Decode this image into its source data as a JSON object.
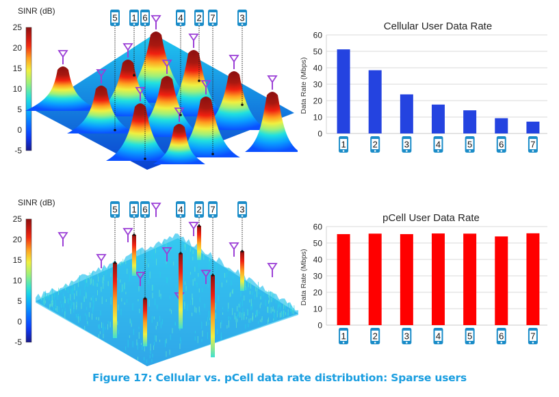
{
  "caption": "Figure 17: Cellular vs. pCell data rate distribution: Sparse users",
  "colors": {
    "cellular_bar": "#2443e0",
    "pcell_bar": "#ff0000",
    "antenna": "#9b3fd6",
    "phone_icon": "#1a8cc8",
    "caption": "#1a9ee0",
    "grid": "#d9d9d9"
  },
  "surface_plots": [
    {
      "id": "cellular-sinr",
      "colorbar_label": "SINR (dB)",
      "colorbar_ticks": [
        "25",
        "20",
        "15",
        "10",
        "5",
        "0",
        "-5"
      ],
      "colorbar_range": [
        -5,
        25
      ],
      "users": [
        "5",
        "1",
        "6",
        "4",
        "2",
        "7",
        "3"
      ],
      "style": "cones"
    },
    {
      "id": "pcell-sinr",
      "colorbar_label": "SINR (dB)",
      "colorbar_ticks": [
        "25",
        "20",
        "15",
        "10",
        "5",
        "0",
        "-5"
      ],
      "colorbar_range": [
        -5,
        25
      ],
      "users": [
        "5",
        "1",
        "6",
        "4",
        "2",
        "7",
        "3"
      ],
      "style": "noise"
    }
  ],
  "chart_data": [
    {
      "type": "bar",
      "title": "Cellular User Data Rate",
      "xlabel": "",
      "ylabel": "Data Rate (Mbps)",
      "categories": [
        "1",
        "2",
        "3",
        "4",
        "5",
        "6",
        "7"
      ],
      "values": [
        51.2,
        38.5,
        23.8,
        17.6,
        14.1,
        9.3,
        7.2
      ],
      "ylim": [
        0,
        60
      ],
      "yticks": [
        "0",
        "10",
        "20",
        "30",
        "40",
        "50",
        "60"
      ],
      "grid": true,
      "legend": "none",
      "category_icon": "phone-icon"
    },
    {
      "type": "bar",
      "title": "pCell User Data Rate",
      "xlabel": "",
      "ylabel": "Data Rate (Mbps)",
      "categories": [
        "1",
        "2",
        "3",
        "4",
        "5",
        "6",
        "7"
      ],
      "values": [
        55.4,
        55.7,
        55.4,
        55.8,
        55.7,
        54.0,
        55.9
      ],
      "ylim": [
        0,
        60
      ],
      "yticks": [
        "0",
        "10",
        "20",
        "30",
        "40",
        "50",
        "60"
      ],
      "grid": true,
      "legend": "none",
      "category_icon": "phone-icon"
    }
  ]
}
